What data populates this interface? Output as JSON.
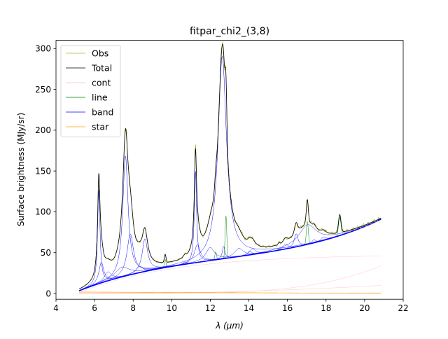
{
  "chart_data": {
    "type": "line",
    "title": "fitpar_chi2_(3,8)",
    "xlabel": "λ (μm)",
    "ylabel": "Surface brightness (MJy/sr)",
    "xlim": [
      4,
      22
    ],
    "ylim": [
      -7,
      310
    ],
    "x_ticks": [
      4,
      6,
      8,
      10,
      12,
      14,
      16,
      18,
      20,
      22
    ],
    "y_ticks": [
      0,
      50,
      100,
      150,
      200,
      250,
      300
    ],
    "legend_position": "top-left",
    "grid": false,
    "continuum_peaks": [
      {
        "name": "cont",
        "curve": "flat",
        "y0": 0.5,
        "y1": 0.8
      },
      {
        "name": "cont",
        "curve": "rising",
        "y0": 0.0,
        "y1": 10
      },
      {
        "name": "cont",
        "curve": "rising-steep",
        "y0": 0.0,
        "y1": 34
      },
      {
        "name": "cont",
        "curve": "saturating",
        "y0": 1,
        "y1": 46
      }
    ],
    "band_features": [
      {
        "center": 6.22,
        "fwhm": 0.15,
        "peak": 115
      },
      {
        "center": 6.35,
        "fwhm": 0.3,
        "peak": 25
      },
      {
        "center": 6.69,
        "fwhm": 0.45,
        "peak": 11
      },
      {
        "center": 7.42,
        "fwhm": 0.9,
        "peak": 12
      },
      {
        "center": 7.6,
        "fwhm": 0.33,
        "peak": 147
      },
      {
        "center": 7.85,
        "fwhm": 0.4,
        "peak": 50
      },
      {
        "center": 8.33,
        "fwhm": 0.4,
        "peak": 8
      },
      {
        "center": 8.61,
        "fwhm": 0.34,
        "peak": 40
      },
      {
        "center": 10.68,
        "fwhm": 0.2,
        "peak": 3
      },
      {
        "center": 11.23,
        "fwhm": 0.14,
        "peak": 112
      },
      {
        "center": 11.33,
        "fwhm": 0.36,
        "peak": 22
      },
      {
        "center": 11.99,
        "fwhm": 0.54,
        "peak": 16
      },
      {
        "center": 12.62,
        "fwhm": 0.53,
        "peak": 248
      },
      {
        "center": 12.69,
        "fwhm": 0.16,
        "peak": 15
      },
      {
        "center": 13.48,
        "fwhm": 0.54,
        "peak": 10
      },
      {
        "center": 14.04,
        "fwhm": 0.23,
        "peak": 5
      },
      {
        "center": 14.19,
        "fwhm": 0.36,
        "peak": 7
      },
      {
        "center": 15.9,
        "fwhm": 0.32,
        "peak": 6
      },
      {
        "center": 16.45,
        "fwhm": 0.23,
        "peak": 16
      },
      {
        "center": 17.04,
        "fwhm": 1.1,
        "peak": 24
      },
      {
        "center": 17.37,
        "fwhm": 0.21,
        "peak": 4
      },
      {
        "center": 17.87,
        "fwhm": 0.29,
        "peak": 4
      }
    ],
    "line_features": [
      {
        "center": 9.66,
        "fwhm": 0.1,
        "peak": 10
      },
      {
        "center": 12.28,
        "fwhm": 0.1,
        "peak": 10
      },
      {
        "center": 12.81,
        "fwhm": 0.1,
        "peak": 52
      },
      {
        "center": 15.56,
        "fwhm": 0.1,
        "peak": 2
      },
      {
        "center": 17.03,
        "fwhm": 0.12,
        "peak": 28
      },
      {
        "center": 18.71,
        "fwhm": 0.15,
        "peak": 22
      }
    ],
    "star": {
      "y_at_5": 1.8,
      "y_at_21": 0.2
    },
    "x_range": [
      5.2,
      20.85
    ],
    "series": [
      {
        "name": "Obs",
        "color": "#b5b532"
      },
      {
        "name": "Total",
        "color": "#000000"
      },
      {
        "name": "cont",
        "color": "#ffb6c1"
      },
      {
        "name": "line",
        "color": "#008000"
      },
      {
        "name": "band",
        "color": "#0000ff"
      },
      {
        "name": "star",
        "color": "#ffa500"
      }
    ]
  }
}
